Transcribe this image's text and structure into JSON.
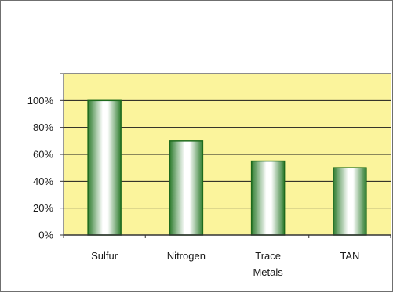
{
  "chart_data": {
    "type": "bar",
    "categories": [
      "Sulfur",
      "Nitrogen",
      "Trace Metals",
      "TAN"
    ],
    "category_lines": [
      [
        "Sulfur"
      ],
      [
        "Nitrogen"
      ],
      [
        "Trace",
        "Metals"
      ],
      [
        "TAN"
      ]
    ],
    "values": [
      100,
      70,
      55,
      50
    ],
    "unit": "%",
    "ylim": [
      0,
      120
    ],
    "yticks": [
      "0%",
      "20%",
      "40%",
      "60%",
      "80%",
      "100%"
    ],
    "ytick_values": [
      0,
      20,
      40,
      60,
      80,
      100
    ],
    "grid": true,
    "colors": {
      "plot_background": "#fbf49c",
      "gridline": "#1a1a1a",
      "bar_edge": "#1d6a1d",
      "bar_dark": "#2f7d2f",
      "bar_light": "#ffffff"
    }
  }
}
